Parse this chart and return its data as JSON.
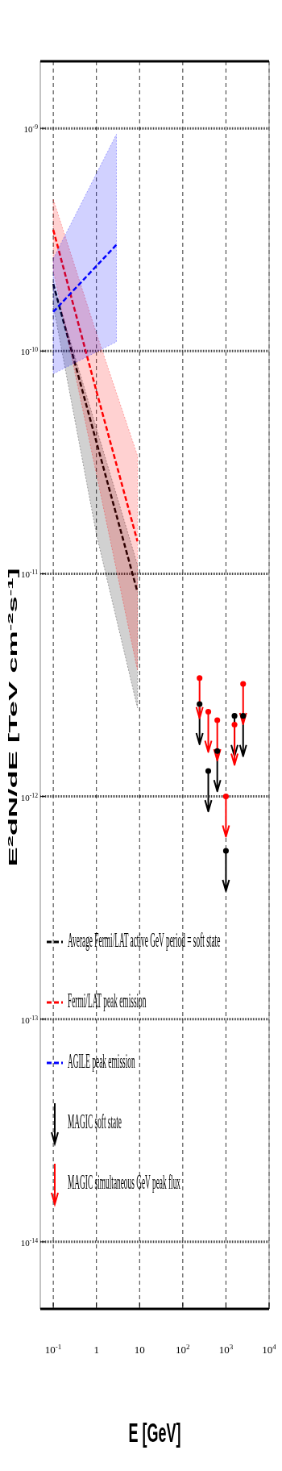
{
  "chart_data": {
    "type": "line",
    "xlabel": "E [GeV]",
    "ylabel": "E$^{2}$dN/dE [TeV cm$^{-2}$s$^{-1}$]",
    "log": "xy",
    "grid": true,
    "legend": "bottom left",
    "xlim": [
      0.05,
      10000
    ],
    "xticks": [
      {
        "value": 0.1,
        "label": "10$^{-1}$"
      },
      1,
      10,
      {
        "value": 100,
        "label": "10$^{2}$"
      },
      {
        "value": 1000,
        "label": "10$^{3}$"
      },
      {
        "value": 10000,
        "label": "10$^{4}$"
      }
    ],
    "ylim": [
      5e-15,
      2e-09
    ],
    "yticks": [
      {
        "value": 1e-09,
        "label": "10$^{-9}$"
      },
      {
        "value": 1e-10,
        "label": "10$^{-10}$"
      },
      {
        "value": 1e-11,
        "label": "10$^{-11}$"
      },
      {
        "value": 1e-12,
        "label": "10$^{-12}$"
      },
      {
        "value": 1e-13,
        "label": "10$^{-13}$"
      },
      {
        "value": 1e-14,
        "label": "10$^{-14}$"
      }
    ],
    "series": [
      {
        "name": "Average Fermi/LAT active GeV period = soft state",
        "line_style": "dashed",
        "color": "#000000",
        "x": [
          0.1,
          1,
          8.9
        ],
        "values": [
          2e-10,
          3.9e-11,
          8.3e-12
        ],
        "lower": [
          1.6e-10,
          1.5e-11,
          2.5e-12
        ],
        "upper": [
          2e-10,
          4.5e-11,
          1.1e-11
        ]
      },
      {
        "name": "Fermi/LAT peak emission",
        "line_style": "dashed",
        "color": "#ff0000",
        "x": [
          0.1,
          1,
          8.9
        ],
        "values": [
          3.5e-10,
          6.6e-11,
          1.4e-11
        ],
        "lower": [
          2.3e-10,
          2.8e-11,
          3.7e-12
        ],
        "upper": [
          4.8e-10,
          1.2e-10,
          3.4e-11
        ]
      },
      {
        "name": "AGILE peak emission",
        "line_style": "dashed",
        "color": "#0000ff",
        "x": [
          0.1,
          2.9
        ],
        "values": [
          1.5e-10,
          3e-10
        ],
        "lower": [
          7.9e-11,
          1.1e-10
        ],
        "upper": [
          2.6e-10,
          9.4e-10
        ]
      },
      {
        "name": "MAGIC soft state",
        "type": "scatter",
        "marker": "circle",
        "color": "#000000",
        "x": [
          245,
          390,
          630,
          1000,
          1580,
          2500
        ],
        "values": [
          2.6e-12,
          1.3e-12,
          1.6e-12,
          5.7e-13,
          2.3e-12,
          2.3e-12
        ]
      },
      {
        "name": "MAGIC simultaneous GeV peak flux",
        "type": "scatter",
        "marker": "circle",
        "color": "#ff0000",
        "x": [
          245,
          390,
          630,
          1000,
          1580,
          2500
        ],
        "values": [
          3.4e-12,
          2.4e-12,
          2.2e-12,
          1e-12,
          2.1e-12,
          3.2e-12
        ]
      }
    ]
  }
}
